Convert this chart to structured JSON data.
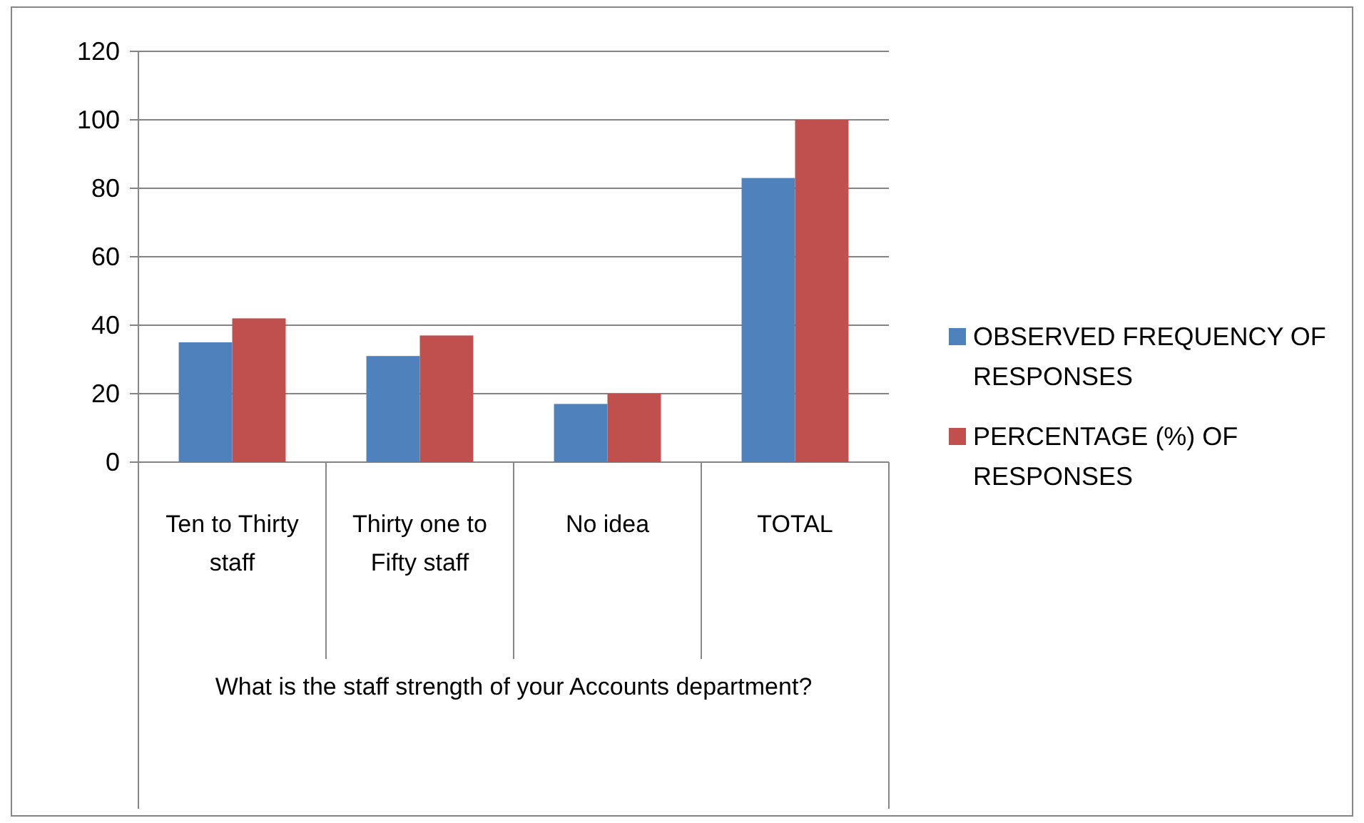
{
  "chart_data": {
    "type": "bar",
    "categories": [
      "Ten to Thirty staff",
      "Thirty one to Fifty staff",
      "No idea",
      "TOTAL"
    ],
    "xlabel": "What is the staff strength of your Accounts department?",
    "series": [
      {
        "name": "OBSERVED FREQUENCY OF RESPONSES",
        "color": "#4f81bd",
        "values": [
          35,
          31,
          17,
          83
        ]
      },
      {
        "name": "PERCENTAGE (%) OF RESPONSES",
        "color": "#c0504d",
        "values": [
          42,
          37,
          20,
          100
        ]
      }
    ],
    "ylim": [
      0,
      120
    ],
    "yticks": [
      0,
      20,
      40,
      60,
      80,
      100,
      120
    ],
    "grid": "y",
    "legend": "right"
  }
}
